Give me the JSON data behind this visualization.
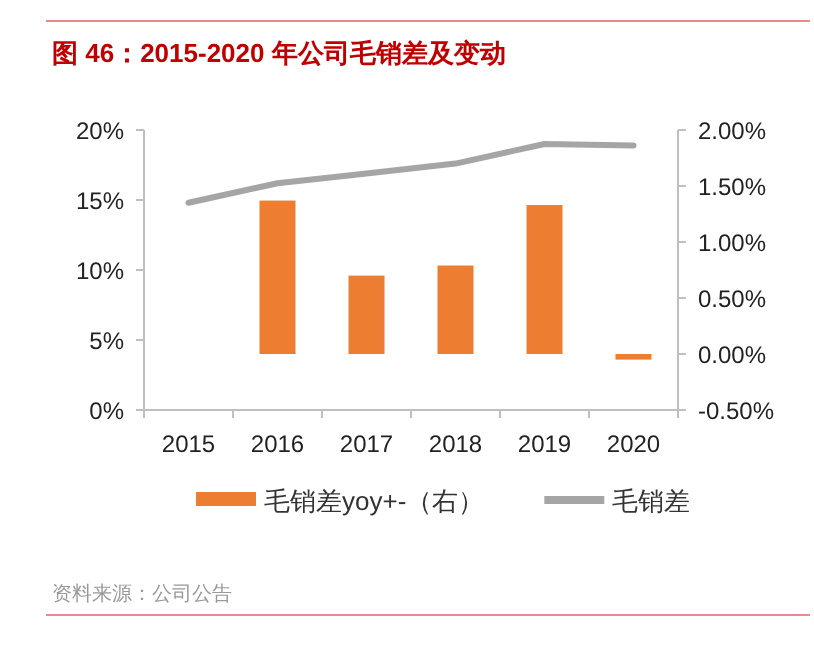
{
  "chart_data": {
    "type": "bar",
    "title": "图 46：2015-2020 年公司毛销差及变动",
    "categories": [
      "2015",
      "2016",
      "2017",
      "2018",
      "2019",
      "2020"
    ],
    "series": [
      {
        "name": "毛销差yoy+-（右）",
        "axis": "y2",
        "color": "#ed7d31",
        "values": [
          null,
          1.37,
          0.7,
          0.79,
          1.33,
          -0.05
        ]
      },
      {
        "name": "毛销差",
        "type": "line",
        "color": "#a5a5a5",
        "values": [
          14.8,
          16.2,
          16.9,
          17.6,
          19.0,
          18.9
        ]
      }
    ],
    "ylim": [
      0,
      20
    ],
    "yticks": [
      {
        "value": 0,
        "label": "0%"
      },
      {
        "value": 5,
        "label": "5%"
      },
      {
        "value": 10,
        "label": "10%"
      },
      {
        "value": 15,
        "label": "15%"
      },
      {
        "value": 20,
        "label": "20%"
      }
    ],
    "y2lim": [
      -0.5,
      2
    ],
    "y2ticks": [
      {
        "value": -0.5,
        "label": "-0.50%"
      },
      {
        "value": 0,
        "label": "0.00%"
      },
      {
        "value": 0.5,
        "label": "0.50%"
      },
      {
        "value": 1,
        "label": "1.00%"
      },
      {
        "value": 1.5,
        "label": "1.50%"
      },
      {
        "value": 2,
        "label": "2.00%"
      }
    ],
    "legend": "bottom",
    "annotations": [
      "资料来源：公司公告"
    ]
  }
}
